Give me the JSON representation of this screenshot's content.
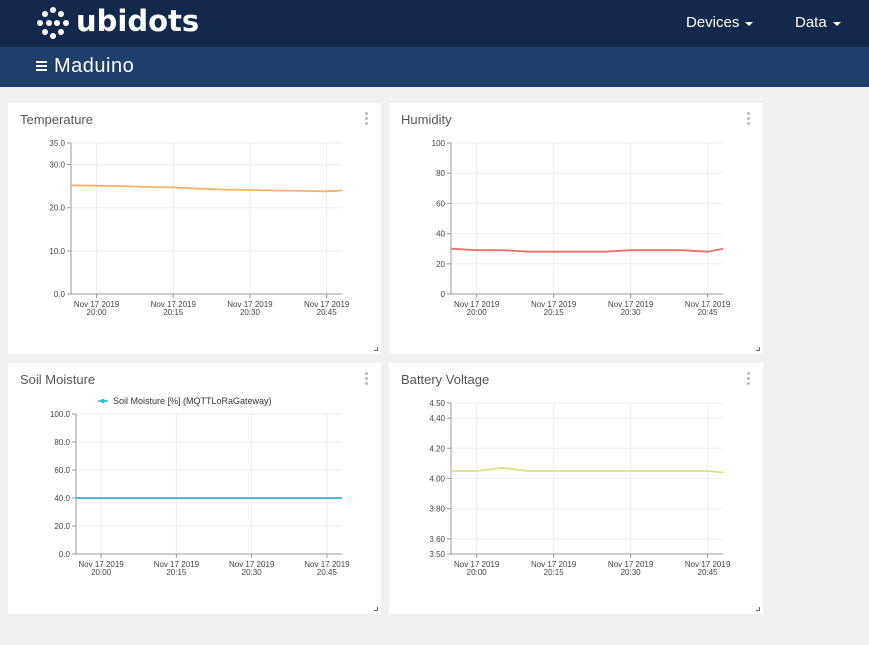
{
  "app": {
    "brand": "ubidots",
    "dashboard_title": "Maduino"
  },
  "nav": {
    "devices": "Devices",
    "data": "Data"
  },
  "colors": {
    "topbar": "#13294b",
    "subbar": "#1f3f6b",
    "temperature": "#f5b26b",
    "humidity": "#ec6f6a",
    "soil": "#27b8cf",
    "battery": "#d9e37b"
  },
  "widgets": [
    {
      "title": "Temperature",
      "chart_data": {
        "type": "line",
        "x": [
          "Nov 17 2019 19:55",
          "Nov 17 2019 20:00",
          "Nov 17 2019 20:05",
          "Nov 17 2019 20:10",
          "Nov 17 2019 20:15",
          "Nov 17 2019 20:20",
          "Nov 17 2019 20:25",
          "Nov 17 2019 20:30",
          "Nov 17 2019 20:35",
          "Nov 17 2019 20:40",
          "Nov 17 2019 20:45",
          "Nov 17 2019 20:48"
        ],
        "series": [
          {
            "values": [
              25.2,
              25.1,
              25.0,
              24.8,
              24.7,
              24.4,
              24.2,
              24.1,
              24.0,
              23.9,
              23.8,
              24.0
            ]
          }
        ],
        "ylim": [
          0,
          35
        ],
        "yticks": [
          "0.0",
          "10.0",
          "20.0",
          "30.0",
          "35.0"
        ],
        "xticks": [
          [
            "Nov 17 2019",
            "20:00"
          ],
          [
            "Nov 17 2019",
            "20:15"
          ],
          [
            "Nov 17 2019",
            "20:30"
          ],
          [
            "Nov 17 2019",
            "20:45"
          ]
        ],
        "grid": true
      }
    },
    {
      "title": "Humidity",
      "chart_data": {
        "type": "line",
        "x": [
          "Nov 17 2019 19:55",
          "Nov 17 2019 20:00",
          "Nov 17 2019 20:05",
          "Nov 17 2019 20:10",
          "Nov 17 2019 20:15",
          "Nov 17 2019 20:20",
          "Nov 17 2019 20:25",
          "Nov 17 2019 20:30",
          "Nov 17 2019 20:35",
          "Nov 17 2019 20:40",
          "Nov 17 2019 20:45",
          "Nov 17 2019 20:48"
        ],
        "series": [
          {
            "values": [
              30,
              29,
              29,
              28,
              28,
              28,
              28,
              29,
              29,
              29,
              28,
              30
            ]
          }
        ],
        "ylim": [
          0,
          100
        ],
        "yticks": [
          "0",
          "20",
          "40",
          "60",
          "80",
          "100"
        ],
        "xticks": [
          [
            "Nov 17 2019",
            "20:00"
          ],
          [
            "Nov 17 2019",
            "20:15"
          ],
          [
            "Nov 17 2019",
            "20:30"
          ],
          [
            "Nov 17 2019",
            "20:45"
          ]
        ],
        "grid": true
      }
    },
    {
      "title": "Soil Moisture",
      "chart_data": {
        "type": "line",
        "x": [
          "Nov 17 2019 19:55",
          "Nov 17 2019 20:15",
          "Nov 17 2019 20:30",
          "Nov 17 2019 20:48"
        ],
        "series": [
          {
            "name": "Soil Moisture [%] (MQTTLoRaGateway)",
            "values": [
              40,
              40,
              40,
              40
            ]
          }
        ],
        "ylim": [
          0,
          100
        ],
        "yticks": [
          "0.0",
          "20.0",
          "40.0",
          "60.0",
          "80.0",
          "100.0"
        ],
        "xticks": [
          [
            "Nov 17 2019",
            "20:00"
          ],
          [
            "Nov 17 2019",
            "20:15"
          ],
          [
            "Nov 17 2019",
            "20:30"
          ],
          [
            "Nov 17 2019",
            "20:45"
          ]
        ],
        "legend": "top",
        "grid": true
      }
    },
    {
      "title": "Battery Voltage",
      "chart_data": {
        "type": "line",
        "x": [
          "Nov 17 2019 19:55",
          "Nov 17 2019 20:00",
          "Nov 17 2019 20:05",
          "Nov 17 2019 20:10",
          "Nov 17 2019 20:15",
          "Nov 17 2019 20:20",
          "Nov 17 2019 20:25",
          "Nov 17 2019 20:30",
          "Nov 17 2019 20:35",
          "Nov 17 2019 20:40",
          "Nov 17 2019 20:45",
          "Nov 17 2019 20:48"
        ],
        "series": [
          {
            "values": [
              4.05,
              4.05,
              4.07,
              4.05,
              4.05,
              4.05,
              4.05,
              4.05,
              4.05,
              4.05,
              4.05,
              4.04
            ]
          }
        ],
        "ylim": [
          3.5,
          4.5
        ],
        "yticks": [
          "3.50",
          "3.60",
          "3.80",
          "4.00",
          "4.20",
          "4.40",
          "4.50"
        ],
        "xticks": [
          [
            "Nov 17 2019",
            "20:00"
          ],
          [
            "Nov 17 2019",
            "20:15"
          ],
          [
            "Nov 17 2019",
            "20:30"
          ],
          [
            "Nov 17 2019",
            "20:45"
          ]
        ],
        "grid": true
      }
    }
  ]
}
